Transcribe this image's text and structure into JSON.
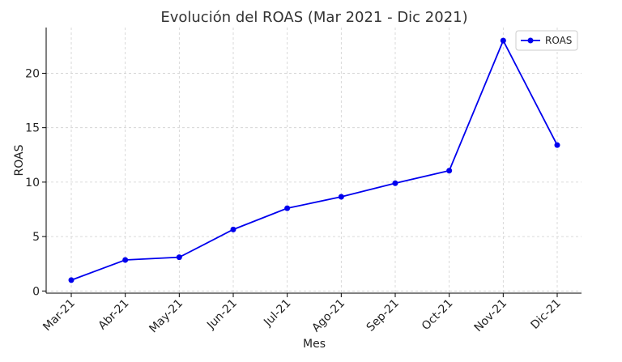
{
  "chart_data": {
    "type": "line",
    "title": "Evolución del ROAS (Mar 2021 - Dic 2021)",
    "xlabel": "Mes",
    "ylabel": "ROAS",
    "categories": [
      "Mar-21",
      "Abr-21",
      "May-21",
      "Jun-21",
      "Jul-21",
      "Ago-21",
      "Sep-21",
      "Oct-21",
      "Nov-21",
      "Dic-21"
    ],
    "series": [
      {
        "name": "ROAS",
        "color": "#0000ee",
        "marker": "circle",
        "values": [
          1.0,
          2.85,
          3.1,
          5.65,
          7.6,
          8.65,
          9.9,
          11.05,
          23.0,
          13.4
        ]
      }
    ],
    "yticks": [
      0,
      5,
      10,
      15,
      20
    ],
    "ylim": [
      -0.2,
      24.2
    ],
    "grid": true,
    "legend_position": "top-right"
  }
}
